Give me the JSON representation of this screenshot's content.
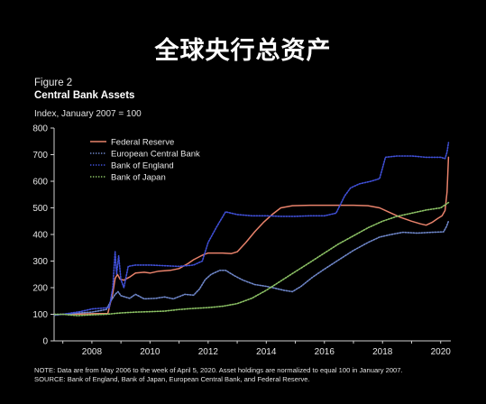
{
  "headline": "全球央行总资产",
  "figure_label": "Figure 2",
  "chart_data": {
    "type": "line",
    "title": "Central Bank Assets",
    "ylabel": "Index, January 2007 = 100",
    "xlabel": "",
    "ylim": [
      0,
      800
    ],
    "xlim": [
      2006.7,
      2020.35
    ],
    "yticks": [
      0,
      100,
      200,
      300,
      400,
      500,
      600,
      700,
      800
    ],
    "xticks": [
      2008,
      2010,
      2012,
      2014,
      2016,
      2018,
      2020
    ],
    "legend_position": "top-left",
    "grid": false,
    "series": [
      {
        "name": "Federal Reserve",
        "color": "#e8826b",
        "style": "solid",
        "points": [
          [
            2006.35,
            96
          ],
          [
            2007.0,
            100
          ],
          [
            2007.6,
            101
          ],
          [
            2008.0,
            102
          ],
          [
            2008.55,
            103
          ],
          [
            2008.72,
            180
          ],
          [
            2008.8,
            235
          ],
          [
            2008.88,
            250
          ],
          [
            2008.97,
            232
          ],
          [
            2009.1,
            228
          ],
          [
            2009.3,
            240
          ],
          [
            2009.5,
            255
          ],
          [
            2009.8,
            258
          ],
          [
            2010.0,
            255
          ],
          [
            2010.3,
            262
          ],
          [
            2010.7,
            265
          ],
          [
            2011.0,
            272
          ],
          [
            2011.3,
            290
          ],
          [
            2011.5,
            305
          ],
          [
            2011.8,
            322
          ],
          [
            2012.0,
            330
          ],
          [
            2012.5,
            330
          ],
          [
            2012.8,
            328
          ],
          [
            2013.0,
            335
          ],
          [
            2013.3,
            370
          ],
          [
            2013.6,
            410
          ],
          [
            2013.9,
            445
          ],
          [
            2014.2,
            475
          ],
          [
            2014.5,
            500
          ],
          [
            2014.9,
            508
          ],
          [
            2015.5,
            510
          ],
          [
            2016.0,
            510
          ],
          [
            2016.5,
            510
          ],
          [
            2017.0,
            510
          ],
          [
            2017.5,
            508
          ],
          [
            2017.9,
            500
          ],
          [
            2018.2,
            485
          ],
          [
            2018.6,
            465
          ],
          [
            2019.0,
            450
          ],
          [
            2019.3,
            440
          ],
          [
            2019.5,
            435
          ],
          [
            2019.7,
            445
          ],
          [
            2019.9,
            460
          ],
          [
            2020.05,
            470
          ],
          [
            2020.15,
            490
          ],
          [
            2020.22,
            560
          ],
          [
            2020.27,
            690
          ]
        ]
      },
      {
        "name": "European Central Bank",
        "color": "#6e86c9",
        "style": "dotted",
        "points": [
          [
            2006.35,
            92
          ],
          [
            2007.0,
            100
          ],
          [
            2007.6,
            105
          ],
          [
            2008.0,
            108
          ],
          [
            2008.5,
            118
          ],
          [
            2008.65,
            150
          ],
          [
            2008.8,
            175
          ],
          [
            2008.9,
            185
          ],
          [
            2009.0,
            170
          ],
          [
            2009.3,
            160
          ],
          [
            2009.5,
            175
          ],
          [
            2009.8,
            158
          ],
          [
            2010.2,
            160
          ],
          [
            2010.5,
            165
          ],
          [
            2010.8,
            158
          ],
          [
            2011.2,
            175
          ],
          [
            2011.5,
            172
          ],
          [
            2011.7,
            195
          ],
          [
            2011.9,
            230
          ],
          [
            2012.1,
            250
          ],
          [
            2012.4,
            265
          ],
          [
            2012.6,
            265
          ],
          [
            2012.9,
            245
          ],
          [
            2013.2,
            228
          ],
          [
            2013.6,
            212
          ],
          [
            2014.0,
            205
          ],
          [
            2014.3,
            198
          ],
          [
            2014.6,
            190
          ],
          [
            2014.9,
            185
          ],
          [
            2015.2,
            205
          ],
          [
            2015.6,
            240
          ],
          [
            2016.0,
            270
          ],
          [
            2016.5,
            305
          ],
          [
            2017.0,
            340
          ],
          [
            2017.5,
            370
          ],
          [
            2017.9,
            390
          ],
          [
            2018.3,
            400
          ],
          [
            2018.7,
            408
          ],
          [
            2019.2,
            405
          ],
          [
            2019.7,
            408
          ],
          [
            2020.1,
            410
          ],
          [
            2020.2,
            430
          ],
          [
            2020.27,
            450
          ]
        ]
      },
      {
        "name": "Bank of England",
        "color": "#3f4fd6",
        "style": "dotted",
        "points": [
          [
            2006.35,
            98
          ],
          [
            2007.0,
            100
          ],
          [
            2007.6,
            110
          ],
          [
            2008.0,
            120
          ],
          [
            2008.6,
            125
          ],
          [
            2008.72,
            200
          ],
          [
            2008.8,
            335
          ],
          [
            2008.85,
            250
          ],
          [
            2008.92,
            320
          ],
          [
            2009.0,
            230
          ],
          [
            2009.1,
            200
          ],
          [
            2009.25,
            280
          ],
          [
            2009.5,
            285
          ],
          [
            2010.0,
            285
          ],
          [
            2010.6,
            282
          ],
          [
            2011.0,
            280
          ],
          [
            2011.5,
            285
          ],
          [
            2011.8,
            300
          ],
          [
            2012.0,
            370
          ],
          [
            2012.3,
            430
          ],
          [
            2012.6,
            485
          ],
          [
            2013.0,
            475
          ],
          [
            2013.5,
            470
          ],
          [
            2014.0,
            470
          ],
          [
            2014.5,
            468
          ],
          [
            2015.0,
            468
          ],
          [
            2015.5,
            470
          ],
          [
            2016.0,
            470
          ],
          [
            2016.4,
            480
          ],
          [
            2016.7,
            545
          ],
          [
            2016.9,
            575
          ],
          [
            2017.2,
            590
          ],
          [
            2017.6,
            600
          ],
          [
            2017.9,
            610
          ],
          [
            2018.1,
            690
          ],
          [
            2018.5,
            695
          ],
          [
            2019.0,
            695
          ],
          [
            2019.5,
            690
          ],
          [
            2020.0,
            690
          ],
          [
            2020.15,
            685
          ],
          [
            2020.22,
            710
          ],
          [
            2020.27,
            745
          ]
        ]
      },
      {
        "name": "Bank of Japan",
        "color": "#8cc265",
        "style": "dotted",
        "points": [
          [
            2006.35,
            110
          ],
          [
            2006.7,
            100
          ],
          [
            2007.0,
            100
          ],
          [
            2007.5,
            95
          ],
          [
            2008.0,
            98
          ],
          [
            2008.5,
            100
          ],
          [
            2009.0,
            105
          ],
          [
            2009.5,
            108
          ],
          [
            2010.0,
            110
          ],
          [
            2010.5,
            112
          ],
          [
            2011.0,
            118
          ],
          [
            2011.5,
            122
          ],
          [
            2012.0,
            125
          ],
          [
            2012.5,
            130
          ],
          [
            2013.0,
            140
          ],
          [
            2013.5,
            160
          ],
          [
            2014.0,
            190
          ],
          [
            2014.5,
            225
          ],
          [
            2015.0,
            260
          ],
          [
            2015.5,
            295
          ],
          [
            2016.0,
            330
          ],
          [
            2016.5,
            365
          ],
          [
            2017.0,
            395
          ],
          [
            2017.5,
            425
          ],
          [
            2018.0,
            450
          ],
          [
            2018.5,
            468
          ],
          [
            2019.0,
            480
          ],
          [
            2019.5,
            492
          ],
          [
            2020.0,
            500
          ],
          [
            2020.27,
            520
          ]
        ]
      }
    ],
    "note_lines": [
      "NOTE: Data are from May 2006 to the week of April 5, 2020. Asset holdings are normalized to equal 100 in January 2007.",
      "SOURCE: Bank of England, Bank of Japan, European Central Bank, and Federal Reserve."
    ]
  }
}
